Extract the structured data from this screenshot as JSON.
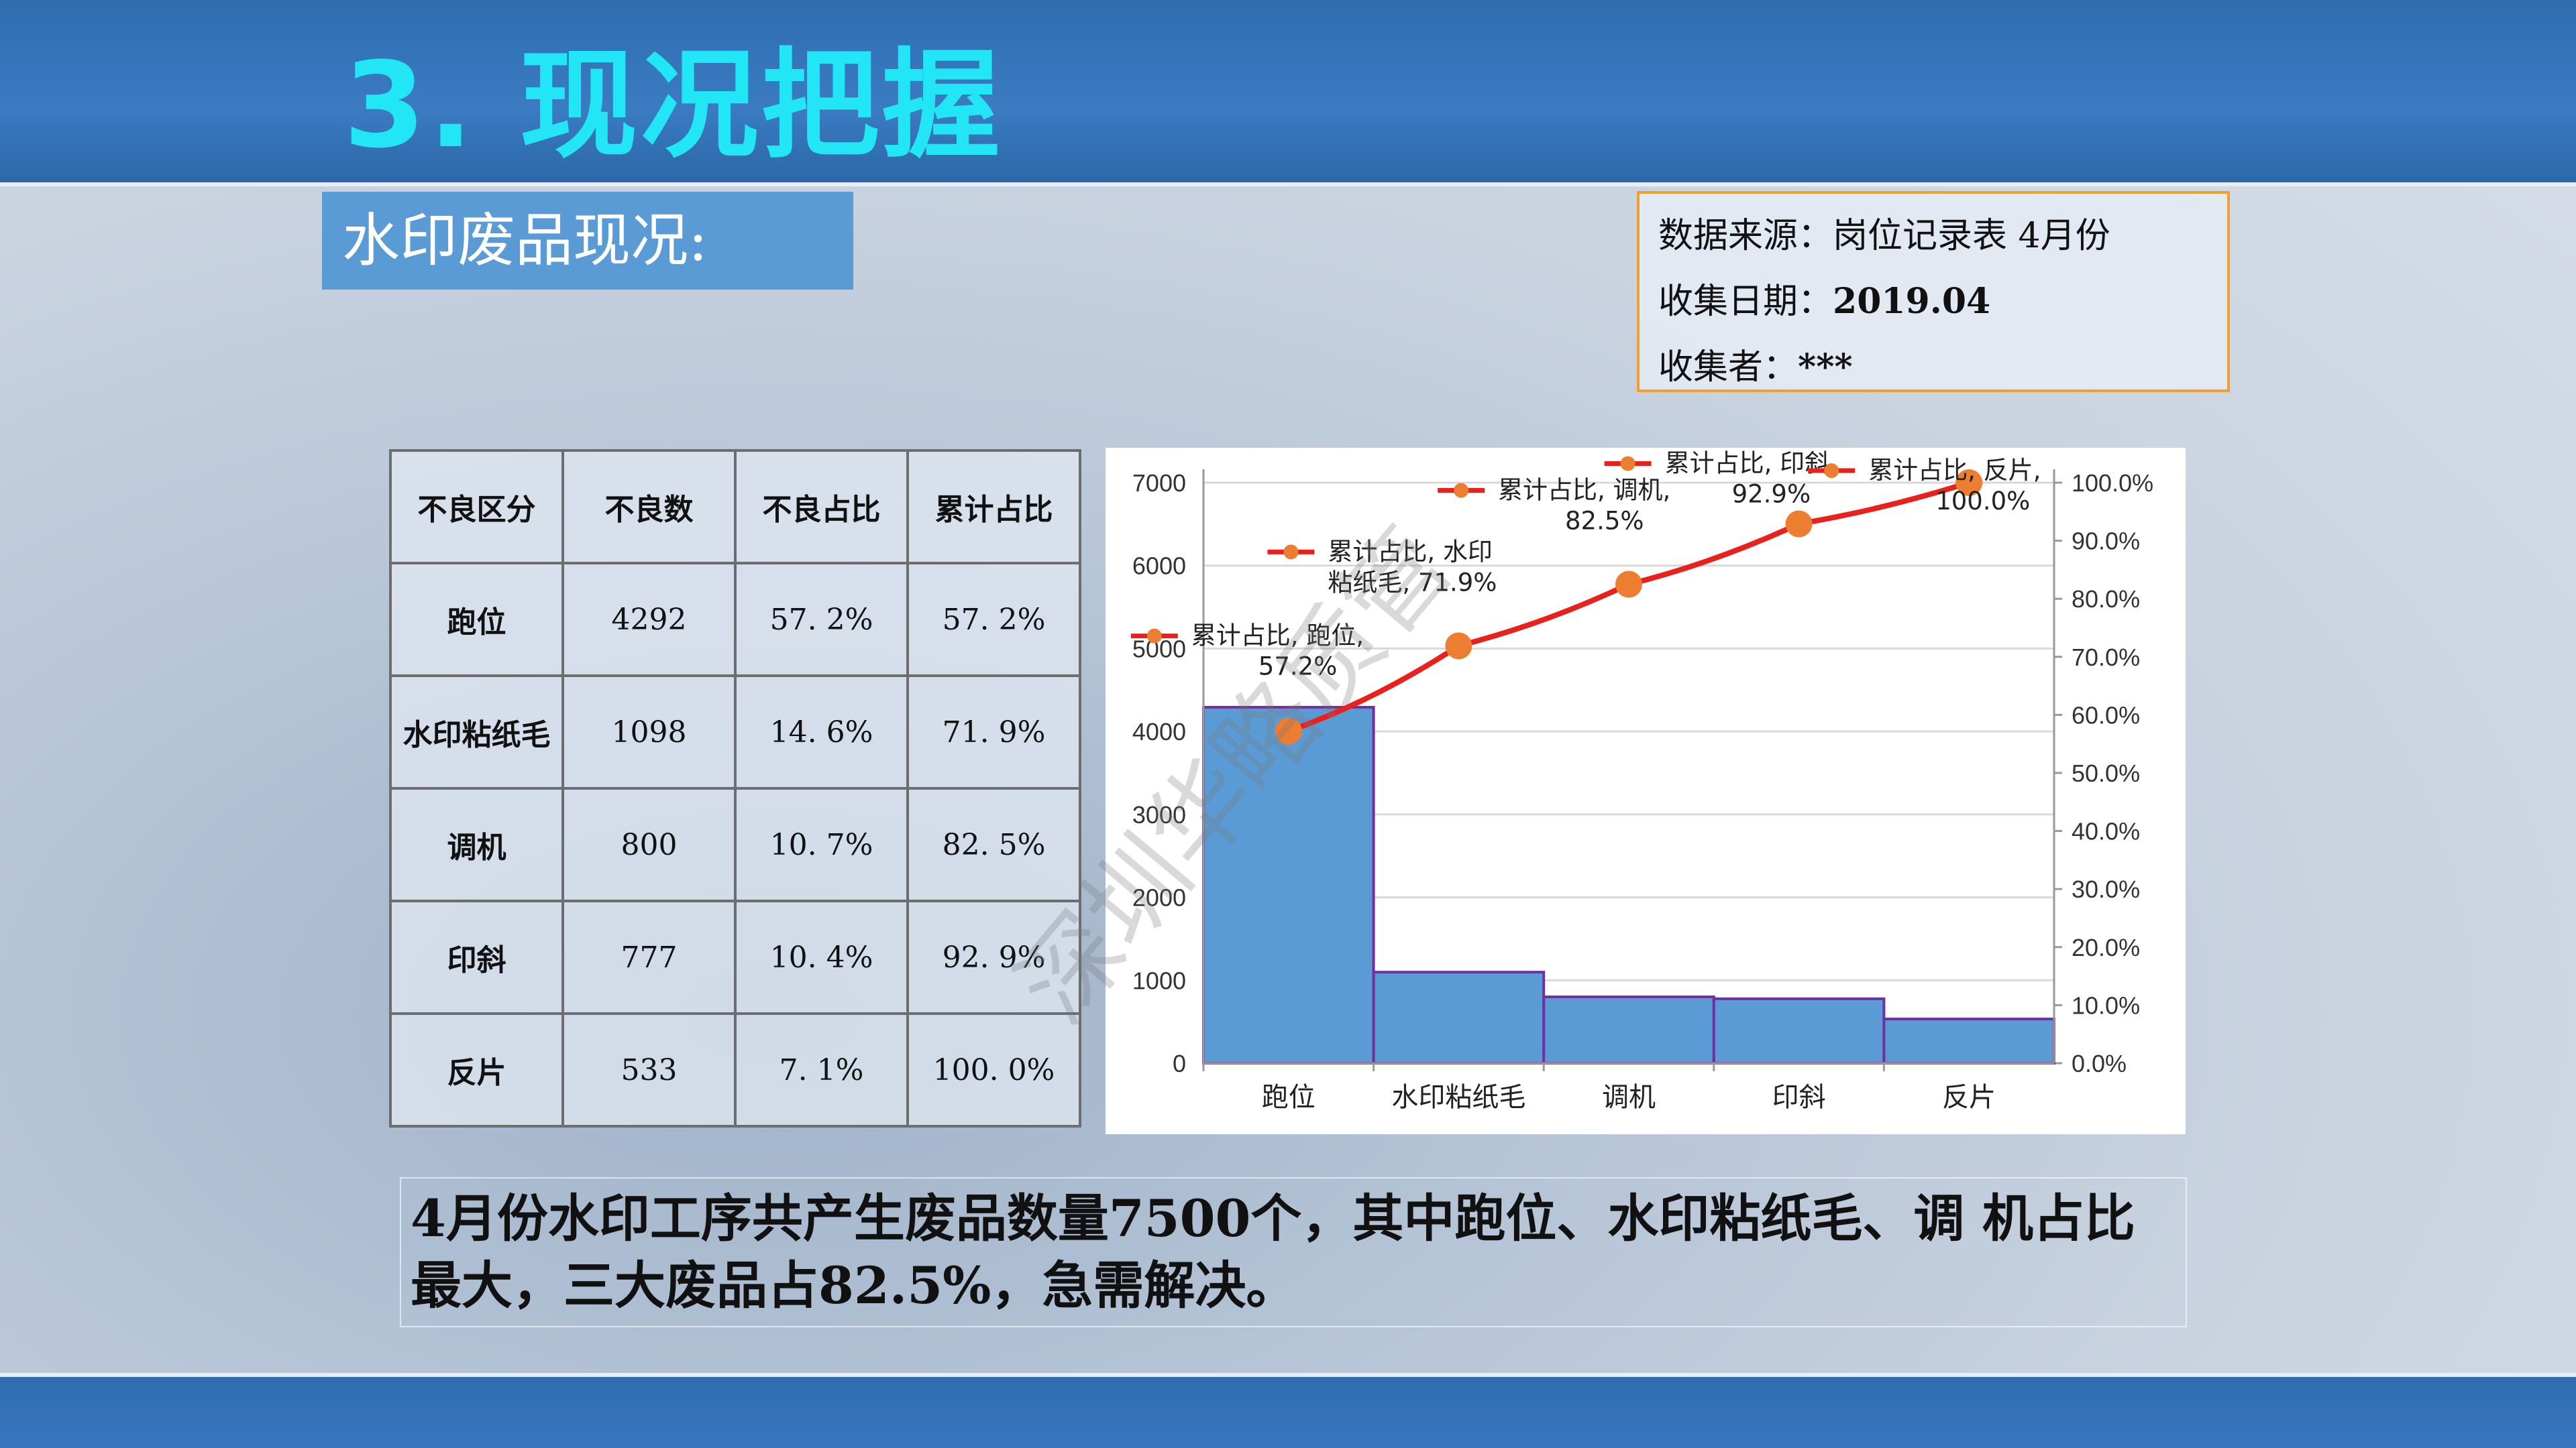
{
  "slide": {
    "title": "3. 现况把握",
    "section_label": "水印废品现况:"
  },
  "info": {
    "source_label": "数据来源：岗位记录表",
    "source_value": "4月份",
    "date_label": "收集日期：",
    "date_value": "2019.04",
    "collector_label": "收集者：",
    "collector_value": "***"
  },
  "table": {
    "headers": [
      "不良区分",
      "不良数",
      "不良占比",
      "累计占比"
    ],
    "rows": [
      [
        "跑位",
        "4292",
        "57. 2%",
        "57. 2%"
      ],
      [
        "水印粘纸毛",
        "1098",
        "14. 6%",
        "71. 9%"
      ],
      [
        "调机",
        "800",
        "10. 7%",
        "82. 5%"
      ],
      [
        "印斜",
        "777",
        "10. 4%",
        "92. 9%"
      ],
      [
        "反片",
        "533",
        "7. 1%",
        "100. 0%"
      ]
    ]
  },
  "chart_data": {
    "type": "bar",
    "categories": [
      "跑位",
      "水印粘纸毛",
      "调机",
      "印斜",
      "反片"
    ],
    "series": [
      {
        "type": "bar",
        "values": [
          4292,
          1098,
          800,
          777,
          533
        ],
        "color": "#5b9bd5"
      },
      {
        "type": "line",
        "name": "累计占比",
        "values": [
          57.2,
          71.9,
          82.5,
          92.9,
          100.0
        ],
        "color": "#e8211d",
        "marker_color": "#ed7d31"
      }
    ],
    "y_left": {
      "min": 0,
      "max": 7000,
      "ticks": [
        "0",
        "1000",
        "2000",
        "3000",
        "4000",
        "5000",
        "6000",
        "7000"
      ]
    },
    "y_right": {
      "min": 0,
      "max": 100,
      "ticks": [
        "0.0%",
        "10.0%",
        "20.0%",
        "30.0%",
        "40.0%",
        "50.0%",
        "60.0%",
        "70.0%",
        "80.0%",
        "90.0%",
        "100.0%"
      ]
    },
    "data_labels": [
      [
        "累计占比, 跑位,",
        "57.2%"
      ],
      [
        "累计占比, 水印",
        "粘纸毛, 71.9%"
      ],
      [
        "累计占比, 调机,",
        "82.5%"
      ],
      [
        "累计占比, 印斜,",
        "92.9%"
      ],
      [
        "累计占比, 反片,",
        "100.0%"
      ]
    ],
    "grid": true
  },
  "watermark": "深圳华略质管",
  "conclusion": "4月份水印工序共产生废品数量7500个，其中跑位、水印粘纸毛、调 机占比最大，三大废品占82.5%，急需解决。"
}
